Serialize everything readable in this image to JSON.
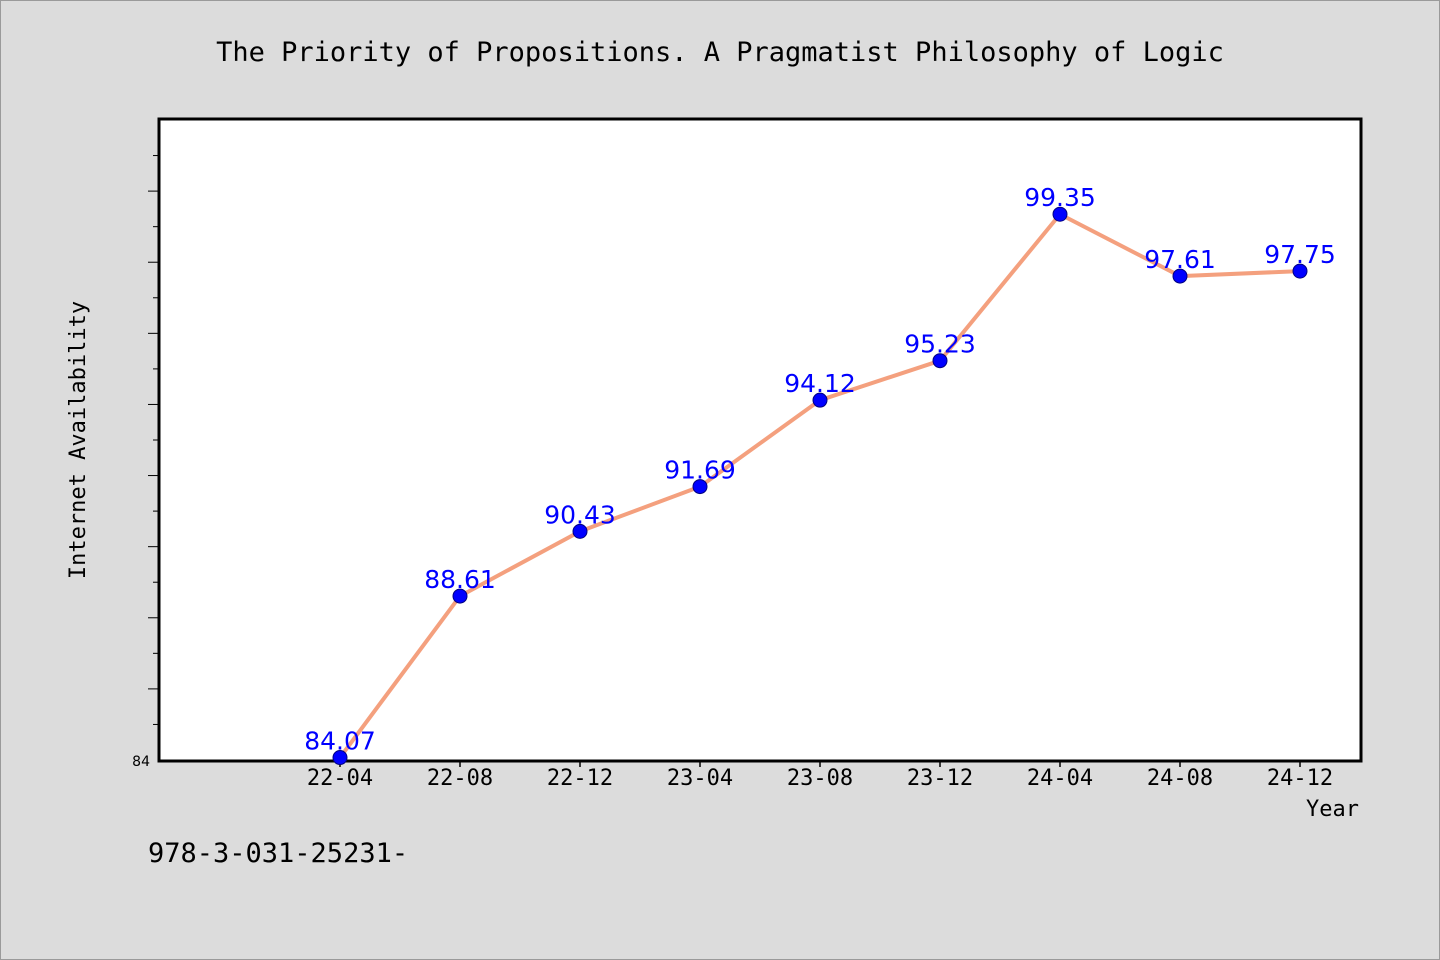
{
  "chart_data": {
    "type": "line",
    "title": "The Priority of Propositions. A Pragmatist Philosophy of Logic",
    "xlabel": "Year",
    "ylabel": "Internet Availability",
    "categories": [
      "22-04",
      "22-08",
      "22-12",
      "23-04",
      "23-08",
      "23-12",
      "24-04",
      "24-08",
      "24-12"
    ],
    "series": [
      {
        "values": [
          84.07,
          88.61,
          90.43,
          91.69,
          94.12,
          95.23,
          99.35,
          97.61,
          97.75
        ]
      }
    ],
    "ylim": [
      84,
      102
    ],
    "y_min_label": "84",
    "grid": false,
    "line_color": "#f4a07e",
    "marker_color": "#0000ff",
    "label_color": "#0000ff"
  },
  "footer": {
    "text": "978-3-031-25231-"
  }
}
